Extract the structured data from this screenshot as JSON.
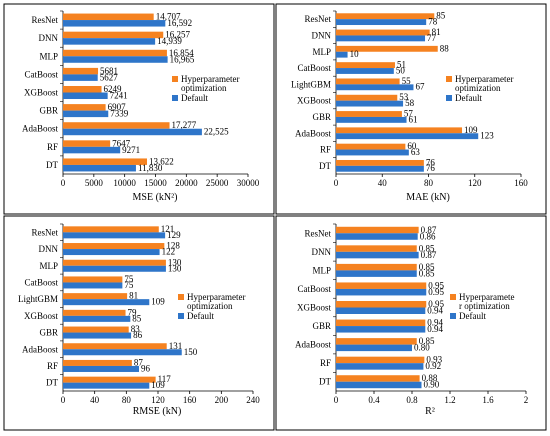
{
  "colors": {
    "hyper": "#F58220",
    "default": "#2E75C9",
    "axis": "#000000",
    "frame": "#000000"
  },
  "chart_data": [
    {
      "type": "bar",
      "orientation": "horizontal",
      "categories": [
        "ResNet",
        "DNN",
        "MLP",
        "CatBoost",
        "XGBoost",
        "GBR",
        "AdaBoost",
        "RF",
        "DT"
      ],
      "series": [
        {
          "name": "Hyperparameter optimization",
          "values": [
            14707,
            16257,
            16854,
            5681,
            6249,
            6907,
            17277,
            7647,
            13622
          ],
          "labels": [
            "14,707",
            "16,257",
            "16,854",
            "5681",
            "6249",
            "6907",
            "17,277",
            "7647",
            "13,622"
          ]
        },
        {
          "name": "Default",
          "values": [
            16592,
            14939,
            16965,
            5627,
            7241,
            7339,
            22525,
            9271,
            11830
          ],
          "labels": [
            "16,592",
            "14,939",
            "16,965",
            "5627",
            "7241",
            "7339",
            "22,525",
            "9271",
            "11,830"
          ]
        }
      ],
      "xlabel": "MSE (kN²)",
      "xlim": [
        0,
        30000
      ],
      "xticks": [
        "0",
        "5000",
        "10000",
        "15000",
        "20000",
        "25000",
        "30000"
      ],
      "legend": "middle-right",
      "grid": false
    },
    {
      "type": "bar",
      "orientation": "horizontal",
      "categories": [
        "ResNet",
        "DNN",
        "MLP",
        "CatBoost",
        "LightGBM",
        "XGBoost",
        "GBR",
        "AdaBoost",
        "RF",
        "DT"
      ],
      "series": [
        {
          "name": "Hyperparameter optimization",
          "values": [
            85,
            81,
            88,
            51,
            55,
            53,
            57,
            109,
            60,
            76
          ],
          "labels": [
            "85",
            "81",
            "88",
            "51",
            "55",
            "53",
            "57",
            "109",
            "60",
            "76"
          ]
        },
        {
          "name": "Default",
          "values": [
            78,
            77,
            10,
            50,
            67,
            58,
            61,
            123,
            63,
            76
          ],
          "labels": [
            "78",
            "77",
            "10",
            "50",
            "67",
            "58",
            "61",
            "123",
            "63",
            "76"
          ]
        }
      ],
      "xlabel": "MAE (kN)",
      "xlim": [
        0,
        160
      ],
      "xticks": [
        "0",
        "40",
        "80",
        "120",
        "160"
      ],
      "legend": "middle-right",
      "grid": false
    },
    {
      "type": "bar",
      "orientation": "horizontal",
      "categories": [
        "ResNet",
        "DNN",
        "MLP",
        "CatBoost",
        "LightGBM",
        "XGBoost",
        "GBR",
        "AdaBoost",
        "RF",
        "DT"
      ],
      "series": [
        {
          "name": "Hyperparameter optimization",
          "values": [
            121,
            128,
            130,
            75,
            81,
            79,
            83,
            131,
            87,
            117
          ],
          "labels": [
            "121",
            "128",
            "130",
            "75",
            "81",
            "79",
            "83",
            "131",
            "87",
            "117"
          ]
        },
        {
          "name": "Default",
          "values": [
            129,
            122,
            130,
            75,
            109,
            85,
            86,
            150,
            96,
            109
          ],
          "labels": [
            "129",
            "122",
            "130",
            "75",
            "109",
            "85",
            "86",
            "150",
            "96",
            "109"
          ]
        }
      ],
      "xlabel": "RMSE (kN)",
      "xlim": [
        0,
        240
      ],
      "xticks": [
        "0",
        "40",
        "80",
        "120",
        "160",
        "200",
        "240"
      ],
      "legend": "middle-right",
      "grid": false
    },
    {
      "type": "bar",
      "orientation": "horizontal",
      "categories": [
        "ResNet",
        "DNN",
        "MLP",
        "CatBoost",
        "XGBoost",
        "GBR",
        "AdaBoost",
        "RF",
        "DT"
      ],
      "series": [
        {
          "name": "Hyperparameter optimization",
          "values": [
            0.87,
            0.85,
            0.85,
            0.95,
            0.95,
            0.94,
            0.85,
            0.93,
            0.88
          ],
          "labels": [
            "0.87",
            "0.85",
            "0.85",
            "0.95",
            "0.95",
            "0.94",
            "0.85",
            "0.93",
            "0.88"
          ]
        },
        {
          "name": "Default",
          "values": [
            0.86,
            0.87,
            0.85,
            0.95,
            0.94,
            0.94,
            0.8,
            0.92,
            0.9
          ],
          "labels": [
            "0.86",
            "0.87",
            "0.85",
            "0.95",
            "0.94",
            "0.94",
            "0.80",
            "0.92",
            "0.90"
          ]
        }
      ],
      "xlabel": "R²",
      "xlim": [
        0,
        2
      ],
      "xticks": [
        "0",
        "0.4",
        "0.8",
        "1.2",
        "1.6",
        "2"
      ],
      "legend": "middle-right",
      "legend_lines": [
        "Hyperparamete",
        "r optimization"
      ],
      "grid": false
    }
  ]
}
